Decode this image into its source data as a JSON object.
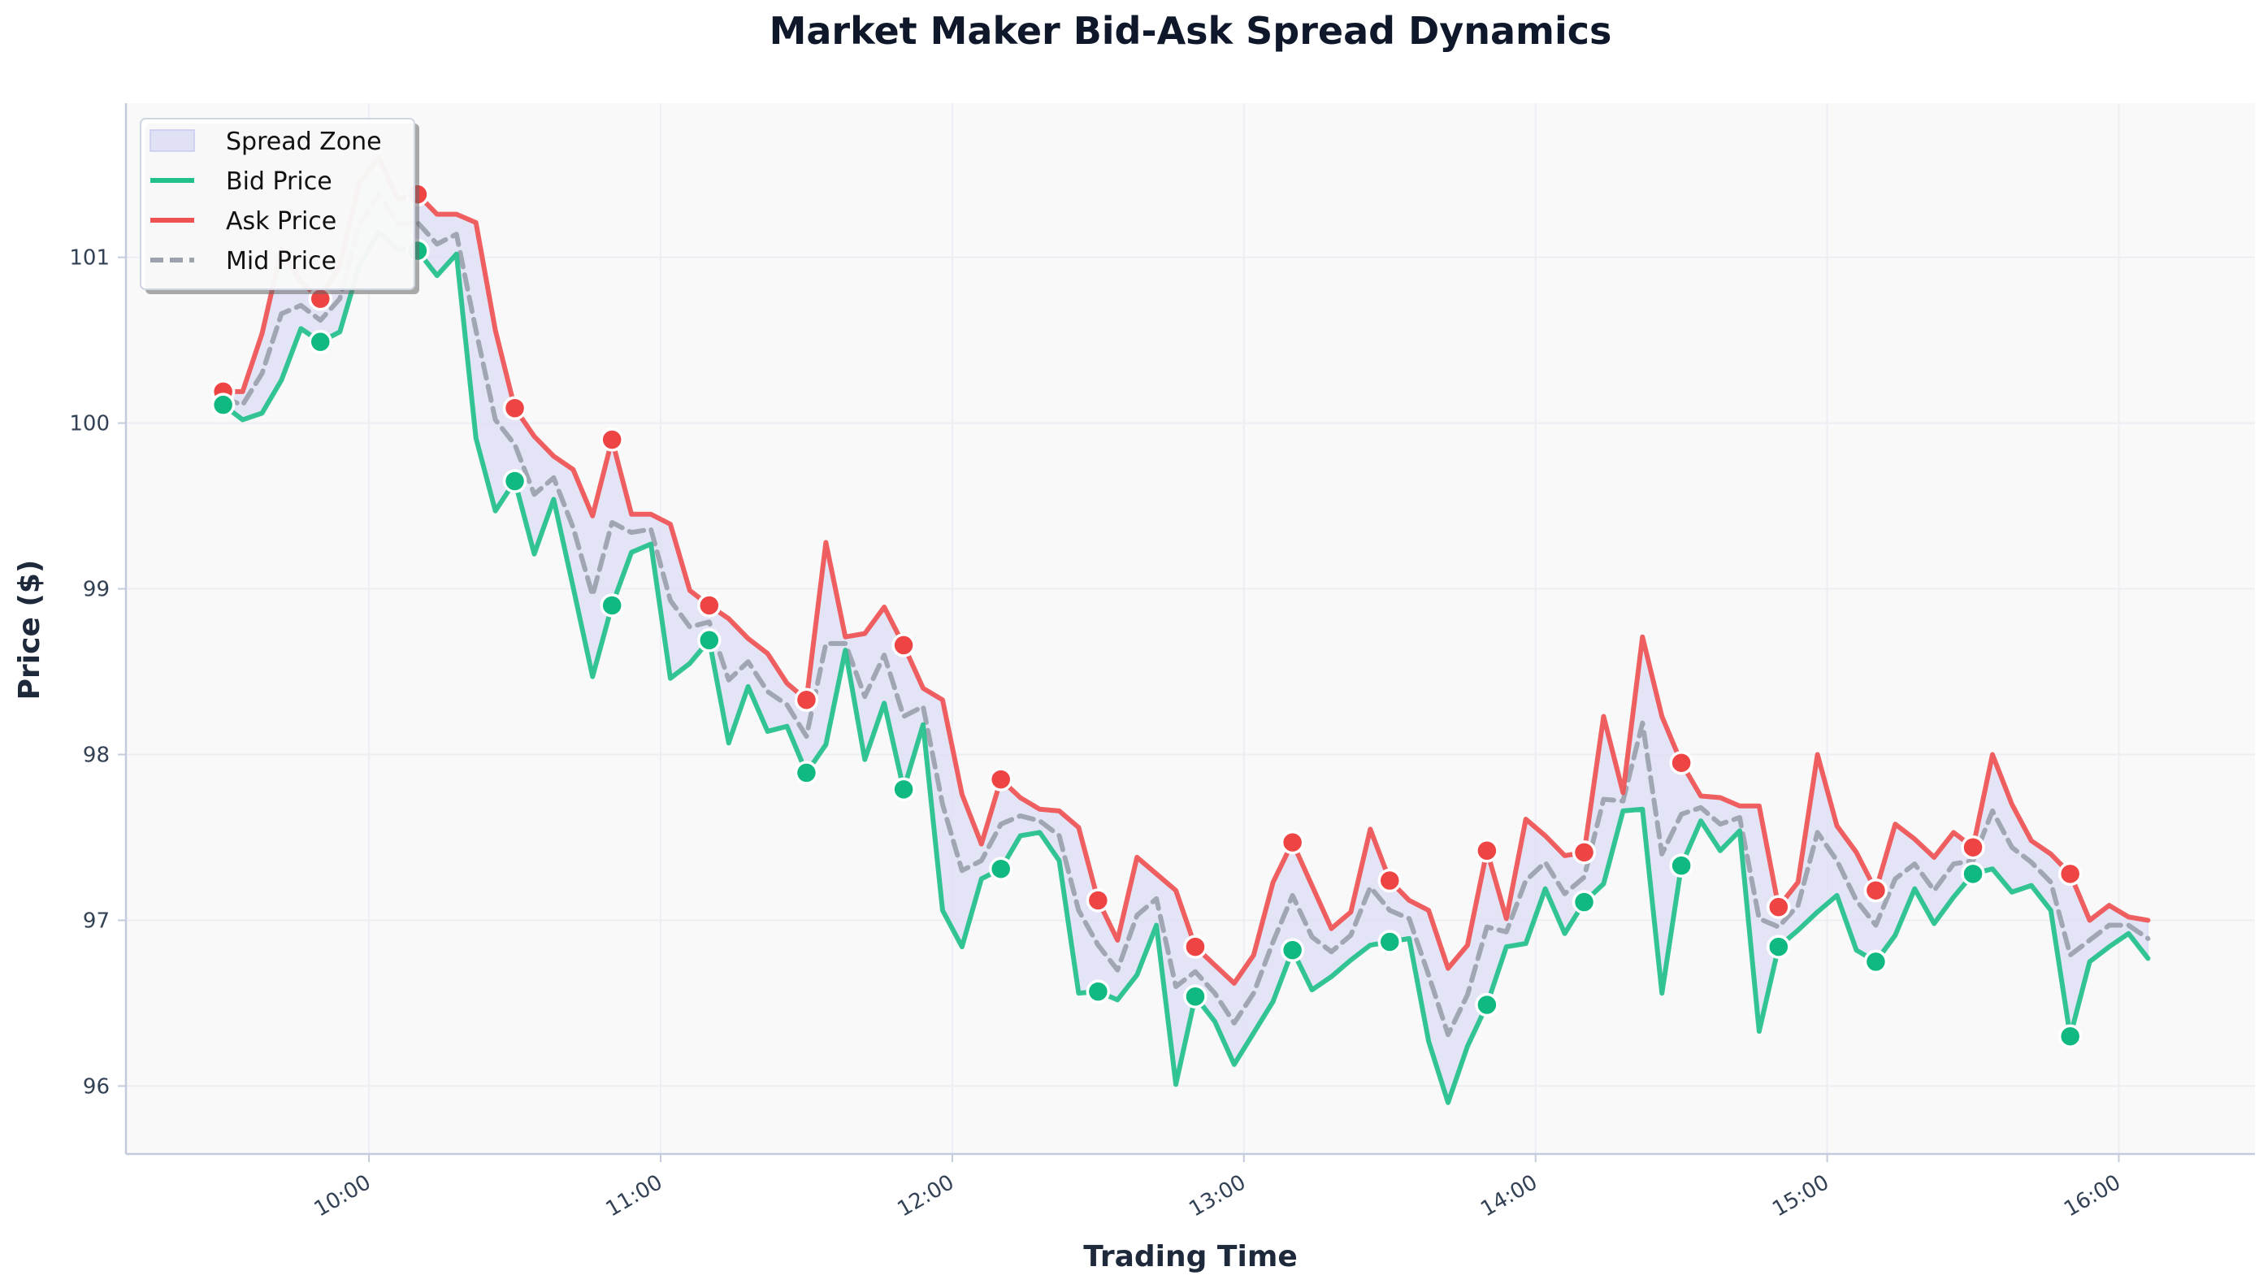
{
  "chart_data": {
    "type": "line",
    "title": "Market Maker Bid-Ask Spread Dynamics",
    "xlabel": "Trading Time",
    "ylabel": "Price ($)",
    "xlim": [
      "09:10",
      "16:28"
    ],
    "ylim": [
      95.59,
      101.93
    ],
    "x_ticks": [
      "10:00",
      "11:00",
      "12:00",
      "13:00",
      "14:00",
      "15:00",
      "16:00"
    ],
    "y_ticks": [
      96,
      97,
      98,
      99,
      100,
      101
    ],
    "grid": true,
    "legend_position": "top-left",
    "legend": [
      "Spread Zone",
      "Bid Price",
      "Ask Price",
      "Mid Price"
    ],
    "x": [
      "09:30",
      "09:34",
      "09:38",
      "09:42",
      "09:46",
      "09:50",
      "09:54",
      "09:58",
      "10:02",
      "10:06",
      "10:10",
      "10:14",
      "10:18",
      "10:22",
      "10:26",
      "10:30",
      "10:34",
      "10:38",
      "10:42",
      "10:46",
      "10:50",
      "10:54",
      "10:58",
      "11:02",
      "11:06",
      "11:10",
      "11:14",
      "11:18",
      "11:22",
      "11:26",
      "11:30",
      "11:34",
      "11:38",
      "11:42",
      "11:46",
      "11:50",
      "11:54",
      "11:58",
      "12:02",
      "12:06",
      "12:10",
      "12:14",
      "12:18",
      "12:22",
      "12:26",
      "12:30",
      "12:34",
      "12:38",
      "12:42",
      "12:46",
      "12:50",
      "12:54",
      "12:58",
      "13:02",
      "13:06",
      "13:10",
      "13:14",
      "13:18",
      "13:22",
      "13:26",
      "13:30",
      "13:34",
      "13:38",
      "13:42",
      "13:46",
      "13:50",
      "13:54",
      "13:58",
      "14:02",
      "14:06",
      "14:10",
      "14:14",
      "14:18",
      "14:22",
      "14:26",
      "14:30",
      "14:34",
      "14:38",
      "14:42",
      "14:46",
      "14:50",
      "14:54",
      "14:58",
      "15:02",
      "15:06",
      "15:10",
      "15:14",
      "15:18",
      "15:22",
      "15:26",
      "15:30",
      "15:34",
      "15:38",
      "15:42",
      "15:46",
      "15:50",
      "15:54",
      "15:58",
      "16:02",
      "16:06"
    ],
    "series": [
      {
        "name": "Bid Price",
        "color": "#10b981",
        "style": "solid",
        "values": [
          100.11,
          100.02,
          100.06,
          100.26,
          100.57,
          100.49,
          100.55,
          100.95,
          101.15,
          101.05,
          101.04,
          100.89,
          101.02,
          99.91,
          99.47,
          99.65,
          99.21,
          99.54,
          99.01,
          98.47,
          98.9,
          99.22,
          99.27,
          98.46,
          98.55,
          98.69,
          98.07,
          98.41,
          98.14,
          98.17,
          97.89,
          98.06,
          98.63,
          97.97,
          98.31,
          97.79,
          98.18,
          97.06,
          96.84,
          97.25,
          97.31,
          97.51,
          97.53,
          97.36,
          96.56,
          96.57,
          96.52,
          96.67,
          96.97,
          96.01,
          96.54,
          96.39,
          96.13,
          96.32,
          96.51,
          96.82,
          96.58,
          96.66,
          96.76,
          96.85,
          96.87,
          96.89,
          96.27,
          95.9,
          96.24,
          96.49,
          96.84,
          96.86,
          97.19,
          96.92,
          97.11,
          97.22,
          97.66,
          97.67,
          96.56,
          97.33,
          97.6,
          97.42,
          97.54,
          96.33,
          96.84,
          96.94,
          97.05,
          97.15,
          96.82,
          96.75,
          96.91,
          97.19,
          96.98,
          97.14,
          97.28,
          97.31,
          97.17,
          97.21,
          97.06,
          96.3,
          96.75,
          96.84,
          96.92,
          96.77
        ]
      },
      {
        "name": "Ask Price",
        "color": "#ef4444",
        "style": "solid",
        "values": [
          100.19,
          100.19,
          100.54,
          101.05,
          100.85,
          100.75,
          100.95,
          101.45,
          101.6,
          101.35,
          101.38,
          101.26,
          101.26,
          101.21,
          100.56,
          100.09,
          99.92,
          99.8,
          99.72,
          99.44,
          99.9,
          99.45,
          99.45,
          99.39,
          98.99,
          98.9,
          98.82,
          98.7,
          98.61,
          98.43,
          98.33,
          99.28,
          98.71,
          98.73,
          98.89,
          98.66,
          98.4,
          98.33,
          97.76,
          97.46,
          97.85,
          97.74,
          97.67,
          97.66,
          97.56,
          97.12,
          96.88,
          97.38,
          97.28,
          97.18,
          96.84,
          96.73,
          96.62,
          96.79,
          97.23,
          97.47,
          97.21,
          96.95,
          97.05,
          97.55,
          97.24,
          97.12,
          97.06,
          96.71,
          96.85,
          97.42,
          97.01,
          97.61,
          97.51,
          97.39,
          97.41,
          98.23,
          97.77,
          98.71,
          98.23,
          97.95,
          97.75,
          97.74,
          97.69,
          97.69,
          97.08,
          97.23,
          98.0,
          97.57,
          97.41,
          97.18,
          97.58,
          97.49,
          97.38,
          97.53,
          97.44,
          98.0,
          97.7,
          97.48,
          97.4,
          97.28,
          97.0,
          97.09,
          97.02,
          97.0
        ]
      },
      {
        "name": "Mid Price",
        "color": "#9ca3af",
        "style": "dashed",
        "values": [
          100.15,
          100.11,
          100.3,
          100.66,
          100.71,
          100.62,
          100.75,
          101.2,
          101.38,
          101.2,
          101.21,
          101.08,
          101.14,
          100.56,
          100.02,
          99.87,
          99.57,
          99.67,
          99.37,
          98.96,
          99.4,
          99.34,
          99.36,
          98.93,
          98.77,
          98.8,
          98.45,
          98.56,
          98.38,
          98.3,
          98.11,
          98.67,
          98.67,
          98.35,
          98.6,
          98.23,
          98.29,
          97.7,
          97.3,
          97.36,
          97.58,
          97.63,
          97.6,
          97.51,
          97.06,
          96.85,
          96.7,
          97.03,
          97.13,
          96.6,
          96.69,
          96.56,
          96.38,
          96.56,
          96.87,
          97.15,
          96.9,
          96.81,
          96.91,
          97.2,
          97.06,
          97.01,
          96.67,
          96.31,
          96.55,
          96.96,
          96.93,
          97.24,
          97.35,
          97.16,
          97.26,
          97.73,
          97.72,
          98.19,
          97.4,
          97.64,
          97.68,
          97.58,
          97.62,
          97.01,
          96.96,
          97.09,
          97.53,
          97.36,
          97.12,
          96.97,
          97.25,
          97.34,
          97.18,
          97.34,
          97.36,
          97.66,
          97.44,
          97.35,
          97.23,
          96.79,
          96.88,
          96.97,
          96.97,
          96.89
        ]
      }
    ],
    "spread_zone_color": "#e0e1f5"
  }
}
